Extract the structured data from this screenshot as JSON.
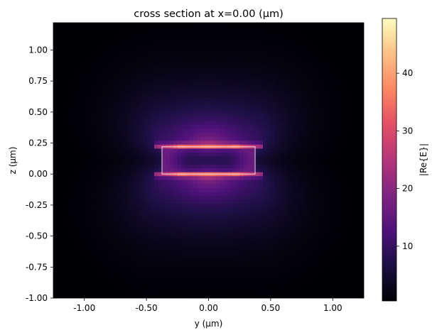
{
  "chart_data": {
    "type": "heatmap",
    "title": "cross section at x=0.00 (μm)",
    "xlabel": "y (μm)",
    "ylabel": "z (μm)",
    "colorbar_label": "|Re{E}|",
    "colormap": "magma",
    "xlim": [
      -1.25,
      1.25
    ],
    "ylim": [
      -1.0,
      1.22
    ],
    "color_range": [
      0.5,
      49.5
    ],
    "x_ticks": [
      -1.0,
      -0.5,
      0.0,
      0.5,
      1.0
    ],
    "x_tick_labels": [
      "-1.00",
      "-0.50",
      "0.00",
      "0.50",
      "1.00"
    ],
    "y_ticks": [
      -1.0,
      -0.75,
      -0.5,
      -0.25,
      0.0,
      0.25,
      0.5,
      0.75,
      1.0
    ],
    "y_tick_labels": [
      "-1.00",
      "-0.75",
      "-0.50",
      "-0.25",
      "0.00",
      "0.25",
      "0.50",
      "0.75",
      "1.00"
    ],
    "colorbar_ticks": [
      10,
      20,
      30,
      40
    ],
    "colorbar_tick_labels": [
      "10",
      "20",
      "30",
      "40"
    ],
    "waveguide": {
      "y_min": -0.375,
      "y_max": 0.375,
      "z_min": 0.0,
      "z_max": 0.22
    },
    "grid": false
  }
}
